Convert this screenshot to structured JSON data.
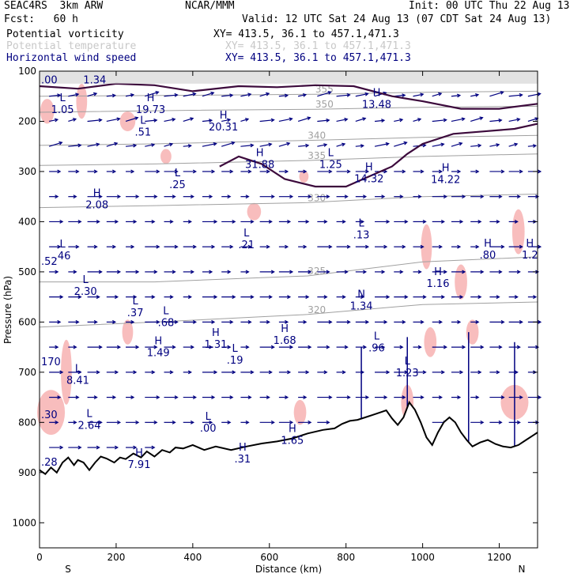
{
  "header": {
    "model": "SEAC4RS  3km ARW",
    "org": "NCAR/MMM",
    "init": "Init: 00 UTC Thu 22 Aug 13",
    "fcst": "Fcst:   60 h",
    "valid": "Valid: 12 UTC Sat 24 Aug 13 (07 CDT Sat 24 Aug 13)",
    "fields": [
      {
        "name": "Potential vorticity",
        "xy": "XY= 413.5, 36.1 to 457.1,471.3",
        "color": "#000000"
      },
      {
        "name": "Potential temperature",
        "xy": "XY= 413.5, 36.1 to 457.1,471.3",
        "color": "#c8c8c8"
      },
      {
        "name": "Horizontal wind speed",
        "xy": "XY= 413.5, 36.1 to 457.1,471.3",
        "color": "#000080"
      }
    ]
  },
  "chart_data": {
    "type": "cross-section",
    "xlabel": "Distance (km)",
    "ylabel": "Pressure (hPa)",
    "xlim": [
      0,
      1300
    ],
    "ylim": [
      1050,
      100
    ],
    "xticks": [
      0,
      200,
      400,
      600,
      800,
      1000,
      1200
    ],
    "yticks": [
      100,
      200,
      300,
      400,
      500,
      600,
      700,
      800,
      900,
      1000
    ],
    "x_end_labels": {
      "left": "S",
      "right": "N"
    },
    "colors": {
      "pv_contour": "#3c0a3c",
      "theta": "#a0a0a0",
      "wind": "#000080",
      "shade_pink": "#f7b6b6",
      "terrain": "#000000"
    },
    "terrain": [
      [
        0,
        895
      ],
      [
        15,
        903
      ],
      [
        30,
        890
      ],
      [
        45,
        900
      ],
      [
        60,
        880
      ],
      [
        75,
        870
      ],
      [
        90,
        885
      ],
      [
        100,
        875
      ],
      [
        115,
        880
      ],
      [
        130,
        895
      ],
      [
        145,
        880
      ],
      [
        160,
        868
      ],
      [
        175,
        872
      ],
      [
        195,
        880
      ],
      [
        210,
        870
      ],
      [
        225,
        873
      ],
      [
        245,
        862
      ],
      [
        265,
        870
      ],
      [
        280,
        858
      ],
      [
        300,
        868
      ],
      [
        320,
        855
      ],
      [
        340,
        860
      ],
      [
        355,
        850
      ],
      [
        375,
        852
      ],
      [
        400,
        845
      ],
      [
        430,
        855
      ],
      [
        460,
        848
      ],
      [
        500,
        855
      ],
      [
        540,
        848
      ],
      [
        580,
        842
      ],
      [
        620,
        838
      ],
      [
        660,
        832
      ],
      [
        700,
        822
      ],
      [
        740,
        815
      ],
      [
        770,
        812
      ],
      [
        790,
        803
      ],
      [
        810,
        797
      ],
      [
        830,
        795
      ],
      [
        850,
        790
      ],
      [
        870,
        785
      ],
      [
        890,
        780
      ],
      [
        905,
        776
      ],
      [
        920,
        792
      ],
      [
        935,
        805
      ],
      [
        950,
        790
      ],
      [
        965,
        760
      ],
      [
        980,
        775
      ],
      [
        995,
        800
      ],
      [
        1010,
        830
      ],
      [
        1025,
        845
      ],
      [
        1040,
        820
      ],
      [
        1055,
        800
      ],
      [
        1070,
        790
      ],
      [
        1085,
        800
      ],
      [
        1100,
        820
      ],
      [
        1115,
        835
      ],
      [
        1130,
        848
      ],
      [
        1150,
        840
      ],
      [
        1170,
        835
      ],
      [
        1190,
        843
      ],
      [
        1210,
        848
      ],
      [
        1230,
        850
      ],
      [
        1250,
        845
      ],
      [
        1270,
        835
      ],
      [
        1290,
        825
      ],
      [
        1300,
        820
      ]
    ],
    "theta_isentropes": [
      {
        "label": "355",
        "points": [
          [
            0,
            150
          ],
          [
            400,
            148
          ],
          [
            720,
            146
          ],
          [
            1000,
            142
          ],
          [
            1300,
            140
          ]
        ]
      },
      {
        "label": "350",
        "points": [
          [
            0,
            182
          ],
          [
            400,
            178
          ],
          [
            720,
            176
          ],
          [
            1000,
            172
          ],
          [
            1300,
            170
          ]
        ]
      },
      {
        "label": "340",
        "points": [
          [
            0,
            248
          ],
          [
            300,
            245
          ],
          [
            700,
            238
          ],
          [
            1000,
            232
          ],
          [
            1300,
            228
          ]
        ]
      },
      {
        "label": "335",
        "points": [
          [
            0,
            288
          ],
          [
            300,
            285
          ],
          [
            700,
            278
          ],
          [
            1000,
            270
          ],
          [
            1300,
            265
          ]
        ]
      },
      {
        "label": "330",
        "points": [
          [
            0,
            372
          ],
          [
            300,
            368
          ],
          [
            700,
            362
          ],
          [
            1000,
            350
          ],
          [
            1300,
            345
          ]
        ]
      },
      {
        "label": "325",
        "points": [
          [
            0,
            520
          ],
          [
            300,
            520
          ],
          [
            700,
            508
          ],
          [
            1000,
            480
          ],
          [
            1300,
            470
          ]
        ]
      },
      {
        "label": "320",
        "points": [
          [
            0,
            610
          ],
          [
            300,
            600
          ],
          [
            700,
            585
          ],
          [
            1000,
            565
          ],
          [
            1300,
            560
          ]
        ]
      }
    ],
    "pv_high_regions": [
      {
        "name": "tropopause",
        "points": [
          [
            0,
            130
          ],
          [
            100,
            135
          ],
          [
            200,
            125
          ],
          [
            300,
            128
          ],
          [
            400,
            140
          ],
          [
            520,
            130
          ],
          [
            620,
            132
          ],
          [
            720,
            128
          ],
          [
            820,
            130
          ],
          [
            920,
            150
          ],
          [
            1000,
            160
          ],
          [
            1100,
            175
          ],
          [
            1200,
            175
          ],
          [
            1300,
            165
          ]
        ]
      },
      {
        "name": "anvil",
        "points": [
          [
            470,
            290
          ],
          [
            520,
            270
          ],
          [
            580,
            285
          ],
          [
            640,
            315
          ],
          [
            720,
            330
          ],
          [
            800,
            330
          ],
          [
            860,
            310
          ],
          [
            920,
            290
          ],
          [
            960,
            265
          ],
          [
            1000,
            245
          ],
          [
            1080,
            225
          ],
          [
            1160,
            220
          ],
          [
            1240,
            215
          ],
          [
            1300,
            205
          ]
        ]
      }
    ],
    "annotations": [
      {
        "kind": "L",
        "value": "1.05",
        "x": 60,
        "p": 180
      },
      {
        "kind": "H",
        "value": "19.73",
        "x": 290,
        "p": 180
      },
      {
        "kind": "H",
        "value": "20.31",
        "x": 480,
        "p": 215
      },
      {
        "kind": "L",
        "value": ".51",
        "x": 270,
        "p": 225
      },
      {
        "kind": "H",
        "value": "31.88",
        "x": 575,
        "p": 290
      },
      {
        "kind": "L",
        "value": "1.25",
        "x": 760,
        "p": 290
      },
      {
        "kind": "H",
        "value": "13.48",
        "x": 880,
        "p": 170
      },
      {
        "kind": "H",
        "value": "14.32",
        "x": 860,
        "p": 318
      },
      {
        "kind": "H",
        "value": "14.22",
        "x": 1060,
        "p": 320
      },
      {
        "kind": "L",
        "value": ".25",
        "x": 360,
        "p": 330
      },
      {
        "kind": "H",
        "value": "2.08",
        "x": 150,
        "p": 370
      },
      {
        "kind": "L",
        "value": ".13",
        "x": 840,
        "p": 430
      },
      {
        "kind": "L",
        "value": ".21",
        "x": 540,
        "p": 450
      },
      {
        "kind": "L",
        "value": ".46",
        "x": 60,
        "p": 472
      },
      {
        "kind": "H",
        "value": ".80",
        "x": 1170,
        "p": 470
      },
      {
        "kind": "H",
        "value": "1.2",
        "x": 1280,
        "p": 470
      },
      {
        "kind": "H",
        "value": "1.16",
        "x": 1040,
        "p": 527
      },
      {
        "kind": "L",
        "value": "2.30",
        "x": 120,
        "p": 543
      },
      {
        "kind": "N",
        "value": "1.34",
        "x": 840,
        "p": 572
      },
      {
        "kind": "L",
        "value": ".37",
        "x": 250,
        "p": 585
      },
      {
        "kind": "L",
        "value": ".68",
        "x": 330,
        "p": 605
      },
      {
        "kind": "H",
        "value": "1.68",
        "x": 640,
        "p": 640
      },
      {
        "kind": "H",
        "value": "1.31",
        "x": 460,
        "p": 648
      },
      {
        "kind": "L",
        "value": ".96",
        "x": 880,
        "p": 655
      },
      {
        "kind": "H",
        "value": "1.49",
        "x": 310,
        "p": 665
      },
      {
        "kind": "L",
        "value": ".19",
        "x": 510,
        "p": 680
      },
      {
        "kind": "L",
        "value": "1.23",
        "x": 960,
        "p": 705
      },
      {
        "kind": "L",
        "value": "8.41",
        "x": 100,
        "p": 720
      },
      {
        "kind": "L",
        "value": "2.64",
        "x": 130,
        "p": 810
      },
      {
        "kind": "L",
        "value": ".00",
        "x": 440,
        "p": 815
      },
      {
        "kind": "H",
        "value": "1.65",
        "x": 660,
        "p": 840
      },
      {
        "kind": "H",
        "value": "7.91",
        "x": 260,
        "p": 888
      },
      {
        "kind": "H",
        "value": ".31",
        "x": 530,
        "p": 877
      }
    ],
    "edge_values": [
      {
        "value": ".52",
        "x": 0,
        "p": 480
      },
      {
        "value": "170",
        "x": 0,
        "p": 680
      },
      {
        "value": ".30",
        "x": 0,
        "p": 785
      },
      {
        "value": ".28",
        "x": 0,
        "p": 880
      },
      {
        "value": ".00",
        "x": 0,
        "p": 118
      },
      {
        "value": "1.34",
        "x": 110,
        "p": 118
      }
    ]
  }
}
